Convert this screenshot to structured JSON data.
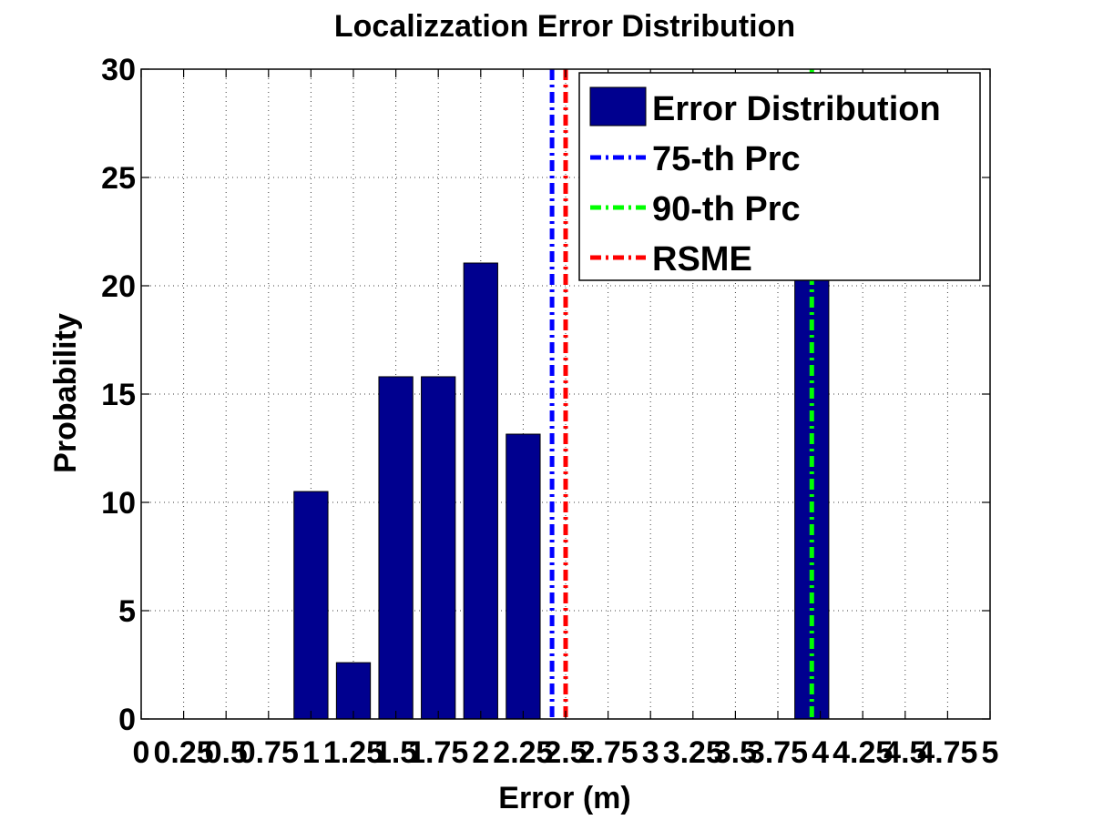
{
  "chart_data": {
    "type": "bar",
    "title": "Localizzation Error Distribution",
    "xlabel": "Error (m)",
    "ylabel": "Probability",
    "xlim": [
      0,
      5
    ],
    "ylim": [
      0,
      30
    ],
    "x_ticks": [
      0,
      0.25,
      0.5,
      0.75,
      1,
      1.25,
      1.5,
      1.75,
      2,
      2.25,
      2.5,
      2.75,
      3,
      3.25,
      3.5,
      3.75,
      4,
      4.25,
      4.5,
      4.75,
      5
    ],
    "x_tick_labels": [
      "0",
      "0.25",
      "0.5",
      "0.75",
      "1",
      "1.25",
      "1.5",
      "1.75",
      "2",
      "2.25",
      "2.5",
      "2.75",
      "3",
      "3.25",
      "3.5",
      "3.75",
      "4",
      "4.25",
      "4.5",
      "4.75",
      "5"
    ],
    "y_ticks": [
      0,
      5,
      10,
      15,
      20,
      25,
      30
    ],
    "y_tick_labels": [
      "0",
      "5",
      "10",
      "15",
      "20",
      "25",
      "30"
    ],
    "grid": true,
    "legend_position": "top-right",
    "bar_series": {
      "name": "Error Distribution",
      "color": "#00008F",
      "x": [
        1,
        1.25,
        1.5,
        1.75,
        2,
        2.25,
        3.95
      ],
      "values": [
        10.5,
        2.6,
        15.8,
        15.8,
        21.05,
        13.15,
        21.05
      ],
      "bar_width": 0.2
    },
    "vertical_lines": [
      {
        "name": "75-th Prc",
        "x": 2.42,
        "color": "#0000FF"
      },
      {
        "name": "90-th Prc",
        "x": 3.95,
        "color": "#00FF00"
      },
      {
        "name": "RSME",
        "x": 2.5,
        "color": "#FF0000"
      }
    ]
  }
}
